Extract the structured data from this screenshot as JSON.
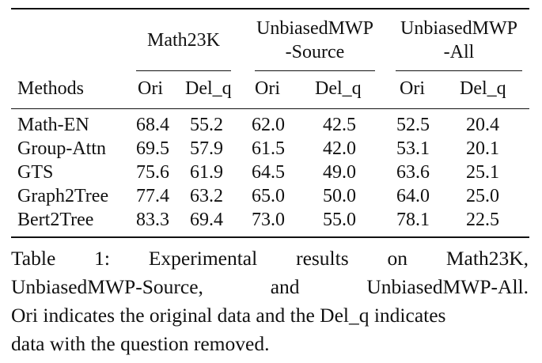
{
  "table": {
    "group_headers": [
      {
        "line1": "Math23K",
        "line2": ""
      },
      {
        "line1": "UnbiasedMWP",
        "line2": "-Source"
      },
      {
        "line1": "UnbiasedMWP",
        "line2": "-All"
      }
    ],
    "columns": [
      "Methods",
      "Ori",
      "Del_q",
      "Ori",
      "Del_q",
      "Ori",
      "Del_q"
    ],
    "rows": [
      {
        "method": "Math-EN",
        "values": [
          "68.4",
          "55.2",
          "62.0",
          "42.5",
          "52.5",
          "20.4"
        ]
      },
      {
        "method": "Group-Attn",
        "values": [
          "69.5",
          "57.9",
          "61.5",
          "42.0",
          "53.1",
          "20.1"
        ]
      },
      {
        "method": "GTS",
        "values": [
          "75.6",
          "61.9",
          "64.5",
          "49.0",
          "63.6",
          "25.1"
        ]
      },
      {
        "method": "Graph2Tree",
        "values": [
          "77.4",
          "63.2",
          "65.0",
          "50.0",
          "64.0",
          "25.0"
        ]
      },
      {
        "method": "Bert2Tree",
        "values": [
          "83.3",
          "69.4",
          "73.0",
          "55.0",
          "78.1",
          "22.5"
        ]
      }
    ]
  },
  "caption": {
    "line1": [
      "Table",
      "1:",
      "Experimental",
      "results",
      "on",
      "Math23K,"
    ],
    "line2": [
      "UnbiasedMWP-Source,",
      "and",
      "UnbiasedMWP-All."
    ],
    "line3": "Ori indicates the original data and the Del_q indicates",
    "line4": "data with the question removed."
  }
}
